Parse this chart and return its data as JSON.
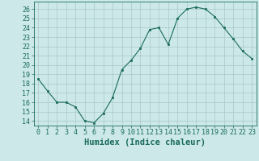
{
  "x": [
    0,
    1,
    2,
    3,
    4,
    5,
    6,
    7,
    8,
    9,
    10,
    11,
    12,
    13,
    14,
    15,
    16,
    17,
    18,
    19,
    20,
    21,
    22,
    23
  ],
  "y": [
    18.5,
    17.2,
    16.0,
    16.0,
    15.5,
    14.0,
    13.8,
    14.8,
    16.5,
    19.5,
    20.5,
    21.8,
    23.8,
    24.0,
    22.2,
    25.0,
    26.0,
    26.2,
    26.0,
    25.2,
    24.0,
    22.8,
    21.5,
    20.7
  ],
  "xlabel": "Humidex (Indice chaleur)",
  "ylabel": "",
  "xlim": [
    -0.5,
    23.5
  ],
  "ylim": [
    13.5,
    26.8
  ],
  "yticks": [
    14,
    15,
    16,
    17,
    18,
    19,
    20,
    21,
    22,
    23,
    24,
    25,
    26
  ],
  "xticks": [
    0,
    1,
    2,
    3,
    4,
    5,
    6,
    7,
    8,
    9,
    10,
    11,
    12,
    13,
    14,
    15,
    16,
    17,
    18,
    19,
    20,
    21,
    22,
    23
  ],
  "line_color": "#1a6b5e",
  "marker_color": "#1a6b5e",
  "bg_color": "#cce8e8",
  "grid_color": "#aac8c8",
  "text_color": "#1a6b5e",
  "xlabel_fontsize": 7.5,
  "tick_fontsize": 6.0
}
